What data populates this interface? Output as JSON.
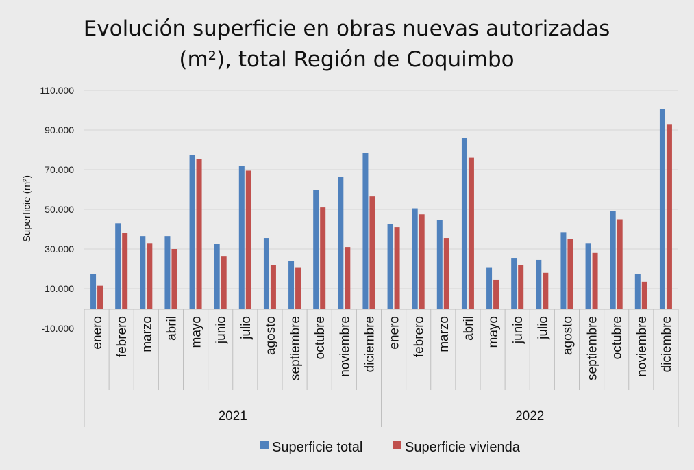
{
  "chart_data": {
    "type": "bar",
    "title_lines": [
      "Evolución superficie en obras nuevas autorizadas",
      "(m²), total Región de Coquimbo"
    ],
    "xlabel": "",
    "ylabel": "Superficie  (m²)",
    "ylim": [
      -10000,
      110000
    ],
    "y_ticks": [
      -10000,
      10000,
      30000,
      50000,
      70000,
      90000,
      110000
    ],
    "y_tick_labels": [
      "-10.000",
      "10.000",
      "30.000",
      "50.000",
      "70.000",
      "90.000",
      "110.000"
    ],
    "grid": true,
    "legend_position": "bottom",
    "groups": [
      {
        "label": "2021",
        "categories": [
          "enero",
          "febrero",
          "marzo",
          "abril",
          "mayo",
          "junio",
          "julio",
          "agosto",
          "septiembre",
          "octubre",
          "noviembre",
          "diciembre"
        ]
      },
      {
        "label": "2022",
        "categories": [
          "enero",
          "febrero",
          "marzo",
          "abril",
          "mayo",
          "junio",
          "julio",
          "agosto",
          "septiembre",
          "octubre",
          "noviembre",
          "diciembre"
        ]
      }
    ],
    "series": [
      {
        "name": "Superficie total",
        "color": "#4f81bd",
        "values": [
          17500,
          43000,
          36500,
          36500,
          77500,
          32500,
          72000,
          35500,
          24000,
          60000,
          66500,
          78500,
          42500,
          50500,
          44500,
          86000,
          20500,
          25500,
          24500,
          38500,
          33000,
          49000,
          17500,
          100500
        ]
      },
      {
        "name": "Superficie vivienda",
        "color": "#c0504d",
        "values": [
          11500,
          38000,
          33000,
          30000,
          75500,
          26500,
          69500,
          22000,
          20500,
          51000,
          31000,
          56500,
          41000,
          47500,
          35500,
          76000,
          14500,
          22000,
          18000,
          35000,
          28000,
          45000,
          13500,
          93000
        ]
      }
    ]
  }
}
